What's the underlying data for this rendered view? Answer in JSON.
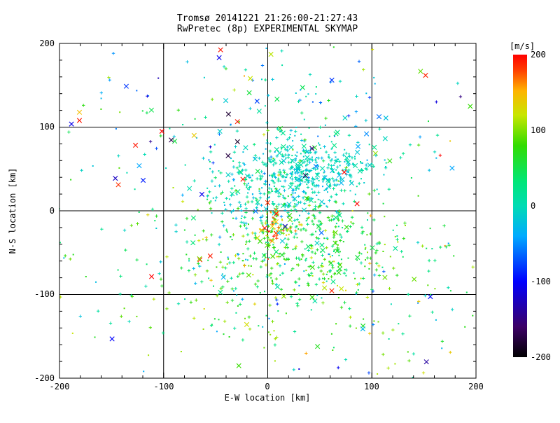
{
  "figure": {
    "background": "#ffffff",
    "axis_color": "#000000"
  },
  "chart_data": {
    "type": "scatter",
    "title": "Tromsø 20141221 21:26:00-21:27:43",
    "subtitle": "RwPretec (8p) EXPERIMENTAL SKYMAP",
    "title_color": "#a0392b",
    "xlabel": "E-W location [km]",
    "ylabel": "N-S location [km]",
    "xlim": [
      -200,
      200
    ],
    "ylim": [
      -200,
      200
    ],
    "x_ticks": [
      "-200",
      "-100",
      "0",
      "100",
      "200"
    ],
    "y_ticks": [
      "200",
      "100",
      "0",
      "-100",
      "-200"
    ],
    "grid_positions": [
      -100,
      0,
      100
    ],
    "minor_tick_step": 20,
    "major_tick_step": 100,
    "grid": true,
    "marker_types": [
      "x",
      "plus",
      "dot"
    ],
    "seed": 42,
    "colorbar": {
      "label": "[m/s]",
      "label_color": "#ff0000",
      "ticks": [
        "200",
        "100",
        "0",
        "-100",
        "-200"
      ],
      "vmin": -200,
      "vmax": 200,
      "colormap_stops": [
        {
          "t": 0.0,
          "color": "#000000"
        },
        {
          "t": 0.1,
          "color": "#3c0066"
        },
        {
          "t": 0.25,
          "color": "#0000ff"
        },
        {
          "t": 0.4,
          "color": "#00aaff"
        },
        {
          "t": 0.5,
          "color": "#00dcb4"
        },
        {
          "t": 0.58,
          "color": "#00e678"
        },
        {
          "t": 0.7,
          "color": "#32dc00"
        },
        {
          "t": 0.8,
          "color": "#c8e600"
        },
        {
          "t": 0.88,
          "color": "#ffb400"
        },
        {
          "t": 0.95,
          "color": "#ff3c00"
        },
        {
          "t": 1.0,
          "color": "#ff0000"
        }
      ]
    },
    "clusters": [
      {
        "n": 420,
        "cx": 15,
        "cy": 30,
        "sx": 32,
        "sy": 26,
        "v": 0,
        "vs": 22,
        "fx": 0.1,
        "fp": 0.55
      },
      {
        "n": 180,
        "cx": 55,
        "cy": 55,
        "sx": 28,
        "sy": 15,
        "v": -5,
        "vs": 15,
        "fx": 0.12,
        "fp": 0.5
      },
      {
        "n": 340,
        "cx": 35,
        "cy": -45,
        "sx": 45,
        "sy": 30,
        "v": 65,
        "vs": 30,
        "fx": 0.08,
        "fp": 0.55
      },
      {
        "n": 60,
        "cx": 8,
        "cy": -15,
        "sx": 10,
        "sy": 12,
        "v": 130,
        "vs": 45,
        "fx": 0.15,
        "fp": 0.5
      },
      {
        "n": 260,
        "cx": 0,
        "cy": -80,
        "sx": 115,
        "sy": 70,
        "v": 45,
        "vs": 40,
        "fx": 0.05,
        "fp": 0.5
      },
      {
        "n": 150,
        "cx": -10,
        "cy": 120,
        "sx": 105,
        "sy": 50,
        "v": 20,
        "vs": 70,
        "fx": 0.3,
        "fp": 0.4
      },
      {
        "n": 22,
        "cx": -40,
        "cy": 60,
        "sx": 120,
        "sy": 95,
        "v": 195,
        "vs": 8,
        "fx": 1.0,
        "fp": 0.0
      },
      {
        "n": 16,
        "cx": -30,
        "cy": 40,
        "sx": 130,
        "sy": 100,
        "v": -105,
        "vs": 25,
        "fx": 0.8,
        "fp": 0.2
      },
      {
        "n": 8,
        "cx": 40,
        "cy": 60,
        "sx": 130,
        "sy": 90,
        "v": -170,
        "vs": 20,
        "fx": 0.5,
        "fp": 0.5
      },
      {
        "n": 70,
        "cx": 60,
        "cy": -120,
        "sx": 100,
        "sy": 55,
        "v": 105,
        "vs": 18,
        "fx": 0.05,
        "fp": 0.6
      },
      {
        "n": 90,
        "cx": 0,
        "cy": 0,
        "sx": 150,
        "sy": 140,
        "v": -25,
        "vs": 30,
        "fx": 0.08,
        "fp": 0.5
      }
    ]
  }
}
